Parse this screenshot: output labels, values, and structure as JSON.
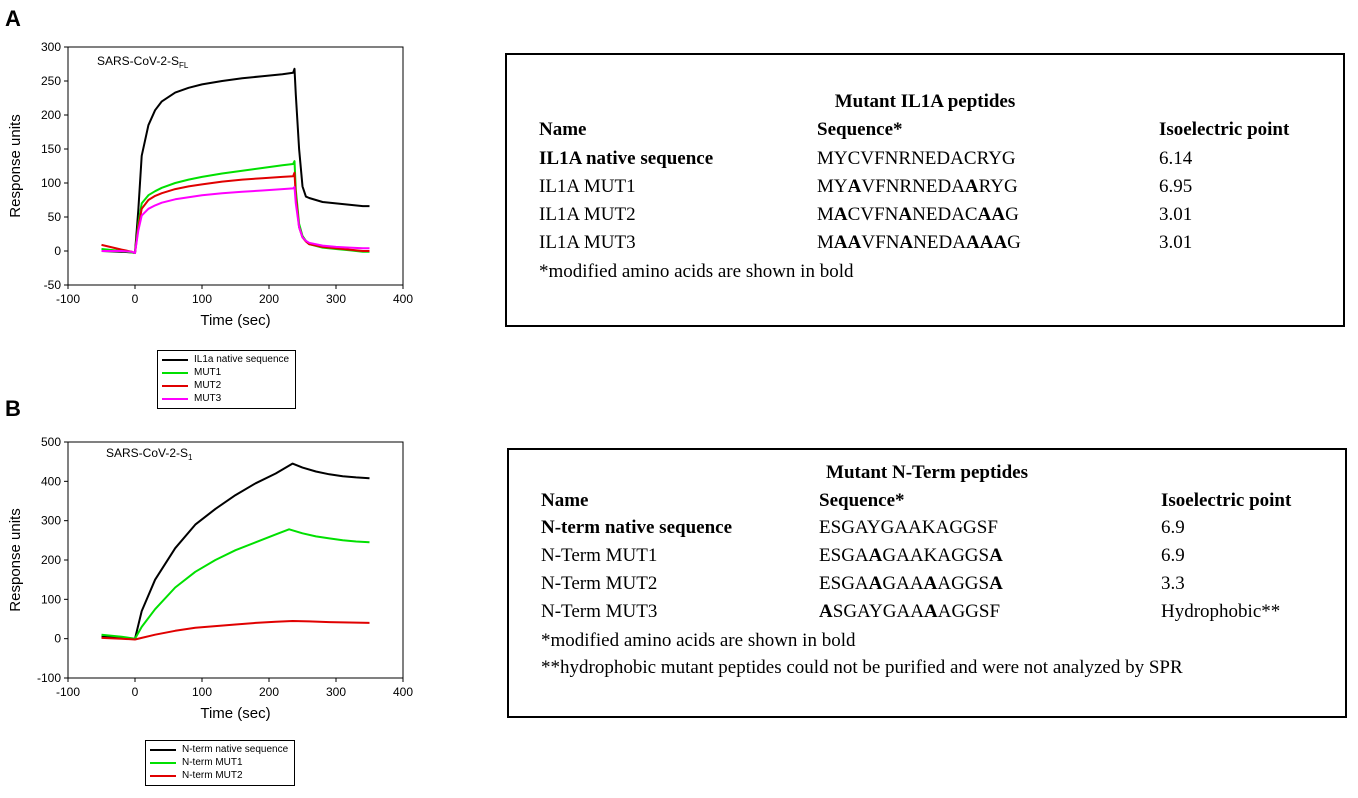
{
  "panels": [
    {
      "letter": "A"
    },
    {
      "letter": "B"
    }
  ],
  "chart_data": [
    {
      "type": "line",
      "title": "SARS-CoV-2-S",
      "title_sub": "FL",
      "xlabel": "Time (sec)",
      "ylabel": "Response units",
      "xlim": [
        -100,
        400
      ],
      "ylim": [
        -50,
        300
      ],
      "xticks": [
        -100,
        0,
        100,
        200,
        300,
        400
      ],
      "yticks": [
        -50,
        0,
        50,
        100,
        150,
        200,
        250,
        300
      ],
      "grid": false,
      "legend_position": "below",
      "series": [
        {
          "name": "IL1a  native sequence",
          "color": "#000000",
          "x": [
            -50,
            -20,
            -5,
            0,
            5,
            10,
            20,
            30,
            40,
            60,
            80,
            100,
            130,
            160,
            190,
            220,
            236,
            238,
            240,
            245,
            250,
            255,
            260,
            270,
            280,
            300,
            320,
            340,
            350
          ],
          "y": [
            0,
            -1,
            -2,
            -3,
            60,
            140,
            185,
            207,
            220,
            233,
            240,
            245,
            250,
            254,
            257,
            260,
            262,
            268,
            230,
            150,
            95,
            80,
            78,
            75,
            72,
            70,
            68,
            66,
            66
          ]
        },
        {
          "name": "MUT1",
          "color": "#00e000",
          "x": [
            -50,
            -20,
            -5,
            0,
            5,
            10,
            20,
            30,
            40,
            60,
            80,
            100,
            130,
            160,
            190,
            220,
            236,
            238,
            240,
            245,
            250,
            255,
            260,
            280,
            300,
            320,
            340,
            350
          ],
          "y": [
            3,
            0,
            -2,
            -3,
            40,
            70,
            82,
            88,
            93,
            100,
            105,
            109,
            114,
            118,
            122,
            126,
            128,
            132,
            90,
            40,
            22,
            15,
            10,
            5,
            3,
            1,
            -1,
            -1
          ]
        },
        {
          "name": "MUT2",
          "color": "#e00000",
          "x": [
            -50,
            -20,
            -5,
            0,
            5,
            10,
            20,
            30,
            40,
            60,
            80,
            100,
            130,
            160,
            190,
            220,
            236,
            238,
            240,
            245,
            250,
            255,
            260,
            280,
            300,
            320,
            340,
            350
          ],
          "y": [
            9,
            2,
            -1,
            -3,
            35,
            62,
            75,
            81,
            85,
            91,
            95,
            98,
            102,
            105,
            107,
            109,
            110,
            115,
            80,
            35,
            20,
            14,
            10,
            6,
            4,
            2,
            0,
            0
          ]
        },
        {
          "name": "MUT3",
          "color": "#ff00ff",
          "x": [
            -50,
            -20,
            -5,
            0,
            5,
            10,
            20,
            30,
            40,
            60,
            80,
            100,
            130,
            160,
            190,
            220,
            236,
            238,
            240,
            245,
            250,
            255,
            260,
            280,
            300,
            320,
            340,
            350
          ],
          "y": [
            0,
            0,
            -1,
            -3,
            30,
            52,
            62,
            67,
            71,
            76,
            79,
            82,
            85,
            87,
            89,
            91,
            92,
            94,
            70,
            35,
            20,
            15,
            12,
            8,
            6,
            5,
            4,
            4
          ]
        }
      ]
    },
    {
      "type": "line",
      "title": "SARS-CoV-2-S",
      "title_sub": "1",
      "xlabel": "Time (sec)",
      "ylabel": "Response units",
      "xlim": [
        -100,
        400
      ],
      "ylim": [
        -100,
        500
      ],
      "xticks": [
        -100,
        0,
        100,
        200,
        300,
        400
      ],
      "yticks": [
        -100,
        0,
        100,
        200,
        300,
        400,
        500
      ],
      "grid": false,
      "legend_position": "below",
      "series": [
        {
          "name": "N-term native sequence",
          "color": "#000000",
          "x": [
            -50,
            -20,
            0,
            10,
            30,
            60,
            90,
            120,
            150,
            180,
            210,
            235,
            250,
            270,
            290,
            310,
            330,
            350
          ],
          "y": [
            5,
            2,
            0,
            70,
            150,
            230,
            290,
            330,
            365,
            395,
            420,
            445,
            435,
            425,
            418,
            413,
            410,
            408
          ]
        },
        {
          "name": "N-term MUT1",
          "color": "#00e000",
          "x": [
            -50,
            -20,
            0,
            10,
            30,
            60,
            90,
            120,
            150,
            180,
            210,
            230,
            250,
            270,
            290,
            310,
            330,
            350
          ],
          "y": [
            10,
            5,
            0,
            30,
            75,
            130,
            170,
            200,
            225,
            245,
            265,
            278,
            268,
            260,
            255,
            250,
            247,
            245
          ]
        },
        {
          "name": "N-term MUT2",
          "color": "#e00000",
          "x": [
            -50,
            -20,
            0,
            10,
            30,
            60,
            90,
            120,
            150,
            180,
            210,
            235,
            260,
            290,
            320,
            350
          ],
          "y": [
            2,
            0,
            -2,
            2,
            10,
            20,
            28,
            32,
            36,
            40,
            43,
            45,
            44,
            42,
            41,
            40
          ]
        }
      ]
    }
  ],
  "tables": [
    {
      "title": "Mutant IL1A peptides",
      "headers": [
        "Name",
        "Sequence*",
        "Isoelectric point"
      ],
      "rows": [
        {
          "name": "IL1A native sequence",
          "name_bold": true,
          "sequence": "MYCVFNRNEDACRYG",
          "bold_mask": "000000000000000",
          "pi": "6.14"
        },
        {
          "name": "IL1A MUT1",
          "name_bold": false,
          "sequence": "MYAVFNRNEDAARYG",
          "bold_mask": "001000000001000",
          "pi": "6.95"
        },
        {
          "name": "IL1A MUT2",
          "name_bold": false,
          "sequence": "MACVFNANEDACAAG",
          "bold_mask": "010000100000110",
          "pi": "3.01"
        },
        {
          "name": "IL1A MUT3",
          "name_bold": false,
          "sequence": "MAAVFNANEDAAAAG",
          "bold_mask": "011000100001110",
          "pi": "3.01"
        }
      ],
      "notes": [
        "*modified amino acids are shown in bold"
      ]
    },
    {
      "title": "Mutant N-Term peptides",
      "headers": [
        "Name",
        "Sequence*",
        "Isoelectric point"
      ],
      "rows": [
        {
          "name": "N-term native sequence",
          "name_bold": true,
          "sequence": "ESGAYGAAKAGGSF",
          "bold_mask": "00000000000000",
          "pi": "6.9"
        },
        {
          "name": "N-Term MUT1",
          "name_bold": false,
          "sequence": "ESGAAGAAKAGGSA",
          "bold_mask": "00001000000001",
          "pi": "6.9"
        },
        {
          "name": "N-Term MUT2",
          "name_bold": false,
          "sequence": "ESGAAGAAAAGGSA",
          "bold_mask": "00001000100001",
          "pi": "3.3"
        },
        {
          "name": "N-Term MUT3",
          "name_bold": false,
          "sequence": "ASGAYGAAAAGGSF",
          "bold_mask": "10000000100000",
          "pi": "Hydrophobic**"
        }
      ],
      "notes": [
        "*modified amino acids are shown in bold",
        "**hydrophobic mutant peptides could not be purified and were not analyzed by SPR"
      ]
    }
  ]
}
